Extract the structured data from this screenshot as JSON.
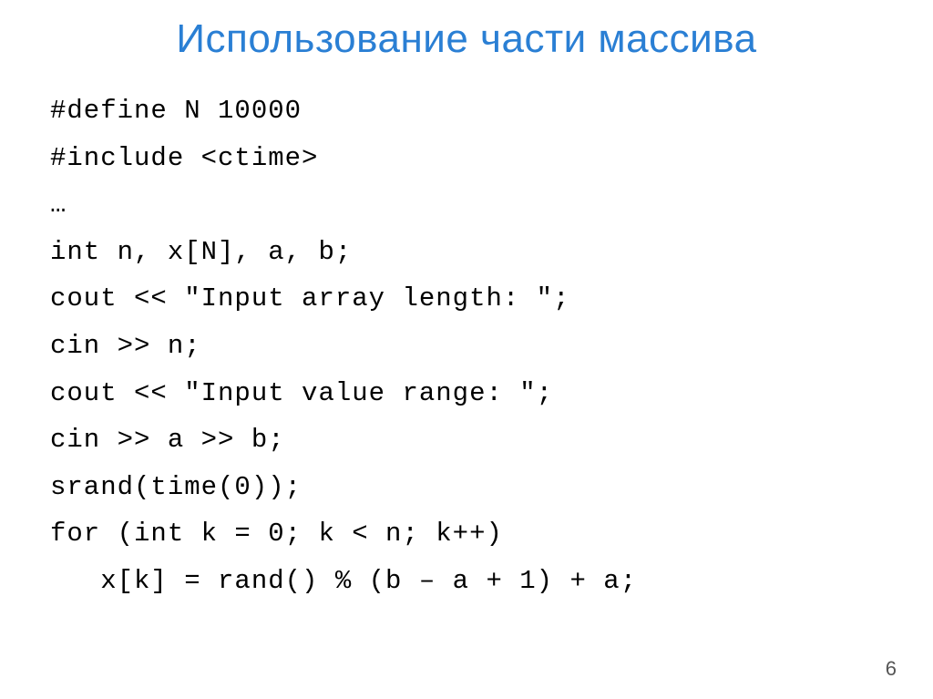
{
  "title": "Использование части массива",
  "code": {
    "lines": [
      "#define N 10000",
      "#include <ctime>",
      "…",
      "int n, x[N], a, b;",
      "cout << \"Input array length: \";",
      "cin >> n;",
      "cout << \"Input value range: \";",
      "cin >> a >> b;",
      "srand(time(0));",
      "for (int k = 0; k < n; k++)",
      "   x[k] = rand() % (b – a + 1) + a;"
    ]
  },
  "page_number": "6",
  "colors": {
    "title": "#2a7fd4",
    "text": "#000000",
    "background": "#ffffff",
    "pagenum": "#555555"
  },
  "typography": {
    "title_fontsize": 44,
    "code_fontsize": 29,
    "code_family": "Courier New",
    "line_height": 1.78
  }
}
